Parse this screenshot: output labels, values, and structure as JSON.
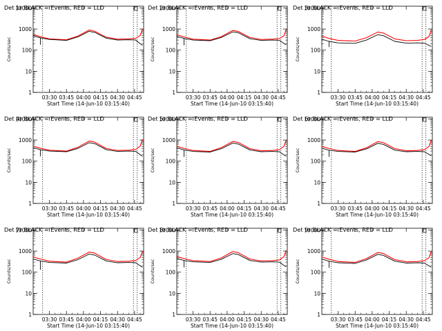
{
  "colors": {
    "events": "#000000",
    "lld": "#ff0000",
    "axis": "#000000"
  },
  "x_tick_labels": [
    "03:30",
    "03:45",
    "04:00",
    "04:15",
    "04:30",
    "04:45"
  ],
  "y_tick_labels": [
    "1",
    "10",
    "100",
    "1000",
    "10000"
  ],
  "chart_data": [
    {
      "type": "line",
      "title": "Det 1r BLACK = Events, RED = LLD",
      "xlabel": "Start Time (14-Jun-10 03:15:40)",
      "ylabel": "Counts/sec",
      "xlim": [
        "03:15:40",
        "04:53:00"
      ],
      "ylim": [
        1,
        12000
      ],
      "yscale": "log",
      "vlines": [
        "03:24:00",
        "04:44:00",
        "04:47:20"
      ],
      "box_marker": "04:46:00",
      "x": [
        "03:15:40",
        "03:22:00",
        "03:30:00",
        "03:45:00",
        "03:55:00",
        "04:05:00",
        "04:10:00",
        "04:20:00",
        "04:30:00",
        "04:40:00",
        "04:46:00",
        "04:50:00",
        "04:52:00"
      ],
      "series": [
        {
          "name": "Events",
          "color": "#000000",
          "values": [
            480,
            380,
            320,
            290,
            420,
            780,
            690,
            370,
            300,
            310,
            300,
            200,
            170
          ],
          "spike": {
            "x": "03:22:00",
            "to": 180
          }
        },
        {
          "name": "LLD",
          "color": "#ff0000",
          "values": [
            560,
            430,
            340,
            310,
            460,
            900,
            780,
            410,
            330,
            340,
            360,
            500,
            1000
          ]
        }
      ]
    },
    {
      "type": "line",
      "title": "Det 2r BLACK = Events, RED = LLD",
      "xlabel": "Start Time (14-Jun-10 03:15:40)",
      "ylabel": "Counts/sec",
      "xlim": [
        "03:15:40",
        "04:53:00"
      ],
      "ylim": [
        1,
        12000
      ],
      "yscale": "log",
      "vlines": [
        "03:24:00",
        "04:44:00",
        "04:47:20"
      ],
      "box_marker": "04:46:00",
      "x": [
        "03:15:40",
        "03:22:00",
        "03:30:00",
        "03:45:00",
        "03:55:00",
        "04:05:00",
        "04:10:00",
        "04:20:00",
        "04:30:00",
        "04:40:00",
        "04:46:00",
        "04:50:00",
        "04:52:00"
      ],
      "series": [
        {
          "name": "Events",
          "color": "#000000",
          "values": [
            450,
            360,
            300,
            280,
            400,
            730,
            660,
            350,
            290,
            300,
            290,
            210,
            180
          ],
          "spike": {
            "x": "03:22:00",
            "to": 170
          }
        },
        {
          "name": "LLD",
          "color": "#ff0000",
          "values": [
            540,
            420,
            330,
            300,
            440,
            860,
            760,
            400,
            320,
            330,
            350,
            480,
            950
          ]
        }
      ]
    },
    {
      "type": "line",
      "title": "Det 3r BLACK = Events, RED = LLD",
      "xlabel": "Start Time (14-Jun-10 03:15:40)",
      "ylabel": "Counts/sec",
      "xlim": [
        "03:15:40",
        "04:53:00"
      ],
      "ylim": [
        1,
        12000
      ],
      "yscale": "log",
      "vlines": [
        "03:24:00",
        "04:44:00",
        "04:47:20"
      ],
      "box_marker": "04:46:00",
      "x": [
        "03:15:40",
        "03:22:00",
        "03:30:00",
        "03:45:00",
        "03:55:00",
        "04:05:00",
        "04:10:00",
        "04:20:00",
        "04:30:00",
        "04:40:00",
        "04:46:00",
        "04:50:00",
        "04:52:00"
      ],
      "series": [
        {
          "name": "Events",
          "color": "#000000",
          "values": [
            330,
            260,
            220,
            210,
            300,
            540,
            480,
            260,
            215,
            220,
            215,
            170,
            150
          ],
          "spike": {
            "x": "03:22:00",
            "to": 140
          }
        },
        {
          "name": "LLD",
          "color": "#ff0000",
          "values": [
            460,
            360,
            290,
            270,
            390,
            720,
            640,
            340,
            280,
            290,
            320,
            440,
            850
          ]
        }
      ]
    },
    {
      "type": "line",
      "title": "Det 4r BLACK = Events, RED = LLD",
      "xlabel": "Start Time (14-Jun-10 03:15:40)",
      "ylabel": "Counts/sec",
      "xlim": [
        "03:15:40",
        "04:53:00"
      ],
      "ylim": [
        1,
        12000
      ],
      "yscale": "log",
      "vlines": [
        "03:24:00",
        "04:44:00",
        "04:47:20"
      ],
      "box_marker": "04:46:00",
      "x": [
        "03:15:40",
        "03:22:00",
        "03:30:00",
        "03:45:00",
        "03:55:00",
        "04:05:00",
        "04:10:00",
        "04:20:00",
        "04:30:00",
        "04:40:00",
        "04:46:00",
        "04:50:00",
        "04:52:00"
      ],
      "series": [
        {
          "name": "Events",
          "color": "#000000",
          "values": [
            440,
            350,
            300,
            280,
            400,
            750,
            670,
            350,
            290,
            300,
            290,
            200,
            170
          ],
          "spike": {
            "x": "03:22:00",
            "to": 170
          }
        },
        {
          "name": "LLD",
          "color": "#ff0000",
          "values": [
            520,
            410,
            330,
            300,
            450,
            900,
            790,
            400,
            320,
            330,
            360,
            520,
            1100
          ]
        }
      ]
    },
    {
      "type": "line",
      "title": "Det 5r BLACK = Events, RED = LLD",
      "xlabel": "Start Time (14-Jun-10 03:15:40)",
      "ylabel": "Counts/sec",
      "xlim": [
        "03:15:40",
        "04:53:00"
      ],
      "ylim": [
        1,
        12000
      ],
      "yscale": "log",
      "vlines": [
        "03:24:00",
        "04:44:00",
        "04:47:20"
      ],
      "box_marker": "04:46:00",
      "x": [
        "03:15:40",
        "03:22:00",
        "03:30:00",
        "03:45:00",
        "03:55:00",
        "04:05:00",
        "04:10:00",
        "04:20:00",
        "04:30:00",
        "04:40:00",
        "04:46:00",
        "04:50:00",
        "04:52:00"
      ],
      "series": [
        {
          "name": "Events",
          "color": "#000000",
          "values": [
            430,
            340,
            290,
            270,
            390,
            720,
            640,
            340,
            280,
            290,
            280,
            200,
            170
          ],
          "spike": {
            "x": "03:22:00",
            "to": 160
          }
        },
        {
          "name": "LLD",
          "color": "#ff0000",
          "values": [
            510,
            400,
            320,
            290,
            440,
            860,
            760,
            390,
            310,
            320,
            350,
            500,
            1000
          ]
        }
      ]
    },
    {
      "type": "line",
      "title": "Det 6r BLACK = Events, RED = LLD",
      "xlabel": "Start Time (14-Jun-10 03:15:40)",
      "ylabel": "Counts/sec",
      "xlim": [
        "03:15:40",
        "04:53:00"
      ],
      "ylim": [
        1,
        12000
      ],
      "yscale": "log",
      "vlines": [
        "03:24:00",
        "04:44:00",
        "04:47:20"
      ],
      "box_marker": "04:46:00",
      "x": [
        "03:15:40",
        "03:22:00",
        "03:30:00",
        "03:45:00",
        "03:55:00",
        "04:05:00",
        "04:10:00",
        "04:20:00",
        "04:30:00",
        "04:40:00",
        "04:46:00",
        "04:50:00",
        "04:52:00"
      ],
      "series": [
        {
          "name": "Events",
          "color": "#000000",
          "values": [
            410,
            330,
            290,
            270,
            380,
            700,
            620,
            330,
            280,
            290,
            280,
            210,
            180
          ],
          "spike": {
            "x": "03:22:00",
            "to": 160
          }
        },
        {
          "name": "LLD",
          "color": "#ff0000",
          "values": [
            500,
            400,
            320,
            290,
            430,
            850,
            750,
            390,
            310,
            320,
            350,
            490,
            980
          ]
        }
      ]
    },
    {
      "type": "line",
      "title": "Det 7r BLACK = Events, RED = LLD",
      "xlabel": "Start Time (14-Jun-10 03:15:40)",
      "ylabel": "Counts/sec",
      "xlim": [
        "03:15:40",
        "04:53:00"
      ],
      "ylim": [
        1,
        12000
      ],
      "yscale": "log",
      "vlines": [
        "03:24:00",
        "04:44:00",
        "04:47:20"
      ],
      "box_marker": "04:46:00",
      "x": [
        "03:15:40",
        "03:22:00",
        "03:30:00",
        "03:45:00",
        "03:55:00",
        "04:05:00",
        "04:10:00",
        "04:20:00",
        "04:30:00",
        "04:40:00",
        "04:46:00",
        "04:50:00",
        "04:52:00"
      ],
      "series": [
        {
          "name": "Events",
          "color": "#000000",
          "values": [
            420,
            340,
            290,
            270,
            390,
            720,
            640,
            340,
            280,
            290,
            280,
            200,
            170
          ],
          "spike": {
            "x": "03:22:00",
            "to": 130
          }
        },
        {
          "name": "LLD",
          "color": "#ff0000",
          "values": [
            530,
            420,
            330,
            300,
            460,
            900,
            790,
            400,
            320,
            330,
            360,
            500,
            1000
          ]
        }
      ]
    },
    {
      "type": "line",
      "title": "Det 8r BLACK = Events, RED = LLD",
      "xlabel": "Start Time (14-Jun-10 03:15:40)",
      "ylabel": "Counts/sec",
      "xlim": [
        "03:15:40",
        "04:53:00"
      ],
      "ylim": [
        1,
        12000
      ],
      "yscale": "log",
      "vlines": [
        "03:24:00",
        "04:44:00",
        "04:47:20"
      ],
      "box_marker": "04:46:00",
      "x": [
        "03:15:40",
        "03:22:00",
        "03:30:00",
        "03:45:00",
        "03:55:00",
        "04:05:00",
        "04:10:00",
        "04:20:00",
        "04:30:00",
        "04:40:00",
        "04:46:00",
        "04:50:00",
        "04:52:00"
      ],
      "series": [
        {
          "name": "Events",
          "color": "#000000",
          "values": [
            450,
            360,
            310,
            290,
            410,
            760,
            680,
            360,
            300,
            310,
            300,
            210,
            180
          ],
          "spike": {
            "x": "03:22:00",
            "to": 170
          }
        },
        {
          "name": "LLD",
          "color": "#ff0000",
          "values": [
            560,
            440,
            350,
            320,
            480,
            950,
            830,
            420,
            340,
            350,
            380,
            540,
            1100
          ]
        }
      ]
    },
    {
      "type": "line",
      "title": "Det 9r BLACK = Events, RED = LLD",
      "xlabel": "Start Time (14-Jun-10 03:15:40)",
      "ylabel": "Counts/sec",
      "xlim": [
        "03:15:40",
        "04:53:00"
      ],
      "ylim": [
        1,
        12000
      ],
      "yscale": "log",
      "vlines": [
        "03:24:00",
        "04:44:00",
        "04:47:20"
      ],
      "box_marker": "04:46:00",
      "x": [
        "03:15:40",
        "03:22:00",
        "03:30:00",
        "03:45:00",
        "03:55:00",
        "04:05:00",
        "04:10:00",
        "04:20:00",
        "04:30:00",
        "04:40:00",
        "04:46:00",
        "04:50:00",
        "04:52:00"
      ],
      "series": [
        {
          "name": "Events",
          "color": "#000000",
          "values": [
            420,
            330,
            280,
            260,
            380,
            700,
            620,
            330,
            270,
            280,
            270,
            200,
            170
          ],
          "spike": {
            "x": "03:22:00",
            "to": 160
          }
        },
        {
          "name": "LLD",
          "color": "#ff0000",
          "values": [
            520,
            410,
            320,
            290,
            440,
            860,
            760,
            390,
            310,
            320,
            350,
            480,
            950
          ]
        }
      ]
    }
  ]
}
